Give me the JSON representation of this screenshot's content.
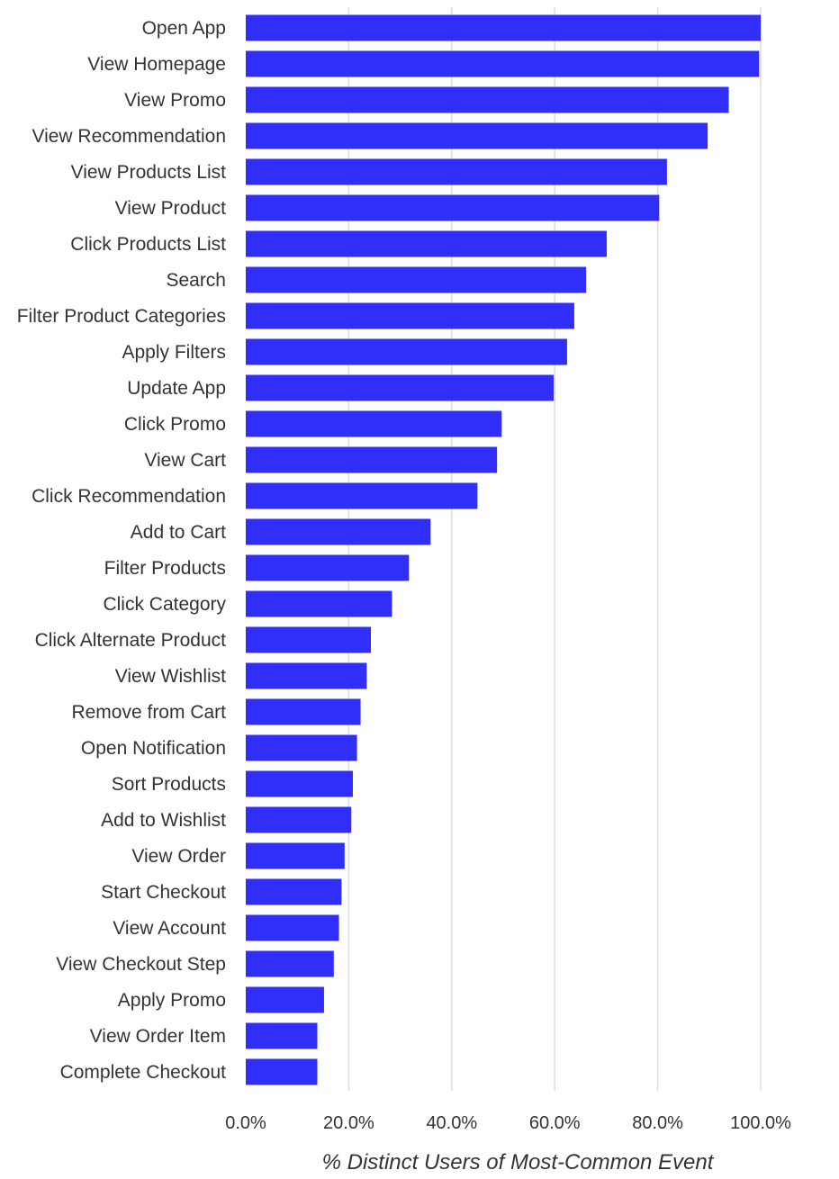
{
  "chart_data": {
    "type": "bar",
    "orientation": "horizontal",
    "title": "",
    "xlabel": "% Distinct Users of Most-Common Event",
    "ylabel": "",
    "xlim": [
      0,
      100
    ],
    "xticks": [
      0,
      20,
      40,
      60,
      80,
      100
    ],
    "xtick_labels": [
      "0.0%",
      "20.0%",
      "40.0%",
      "60.0%",
      "80.0%",
      "100.0%"
    ],
    "grid": "vertical",
    "legend": "none",
    "bar_color": "#2f2ff9",
    "categories": [
      "Open App",
      "View Homepage",
      "View Promo",
      "View Recommendation",
      "View Products List",
      "View Product",
      "Click Products List",
      "Search",
      "Filter Product Categories",
      "Apply Filters",
      "Update App",
      "Click Promo",
      "View Cart",
      "Click Recommendation",
      "Add to Cart",
      "Filter Products",
      "Click Category",
      "Click Alternate Product",
      "View Wishlist",
      "Remove from Cart",
      "Open Notification",
      "Sort Products",
      "Add to Wishlist",
      "View Order",
      "Start Checkout",
      "View Account",
      "View Checkout Step",
      "Apply Promo",
      "View Order Item",
      "Complete Checkout"
    ],
    "values": [
      100.0,
      99.7,
      93.8,
      89.7,
      81.8,
      80.3,
      70.1,
      66.1,
      63.8,
      62.4,
      59.8,
      49.7,
      48.8,
      45.0,
      35.9,
      31.7,
      28.4,
      24.3,
      23.5,
      22.3,
      21.6,
      20.8,
      20.5,
      19.2,
      18.6,
      18.1,
      17.1,
      15.2,
      13.9,
      13.9
    ]
  }
}
